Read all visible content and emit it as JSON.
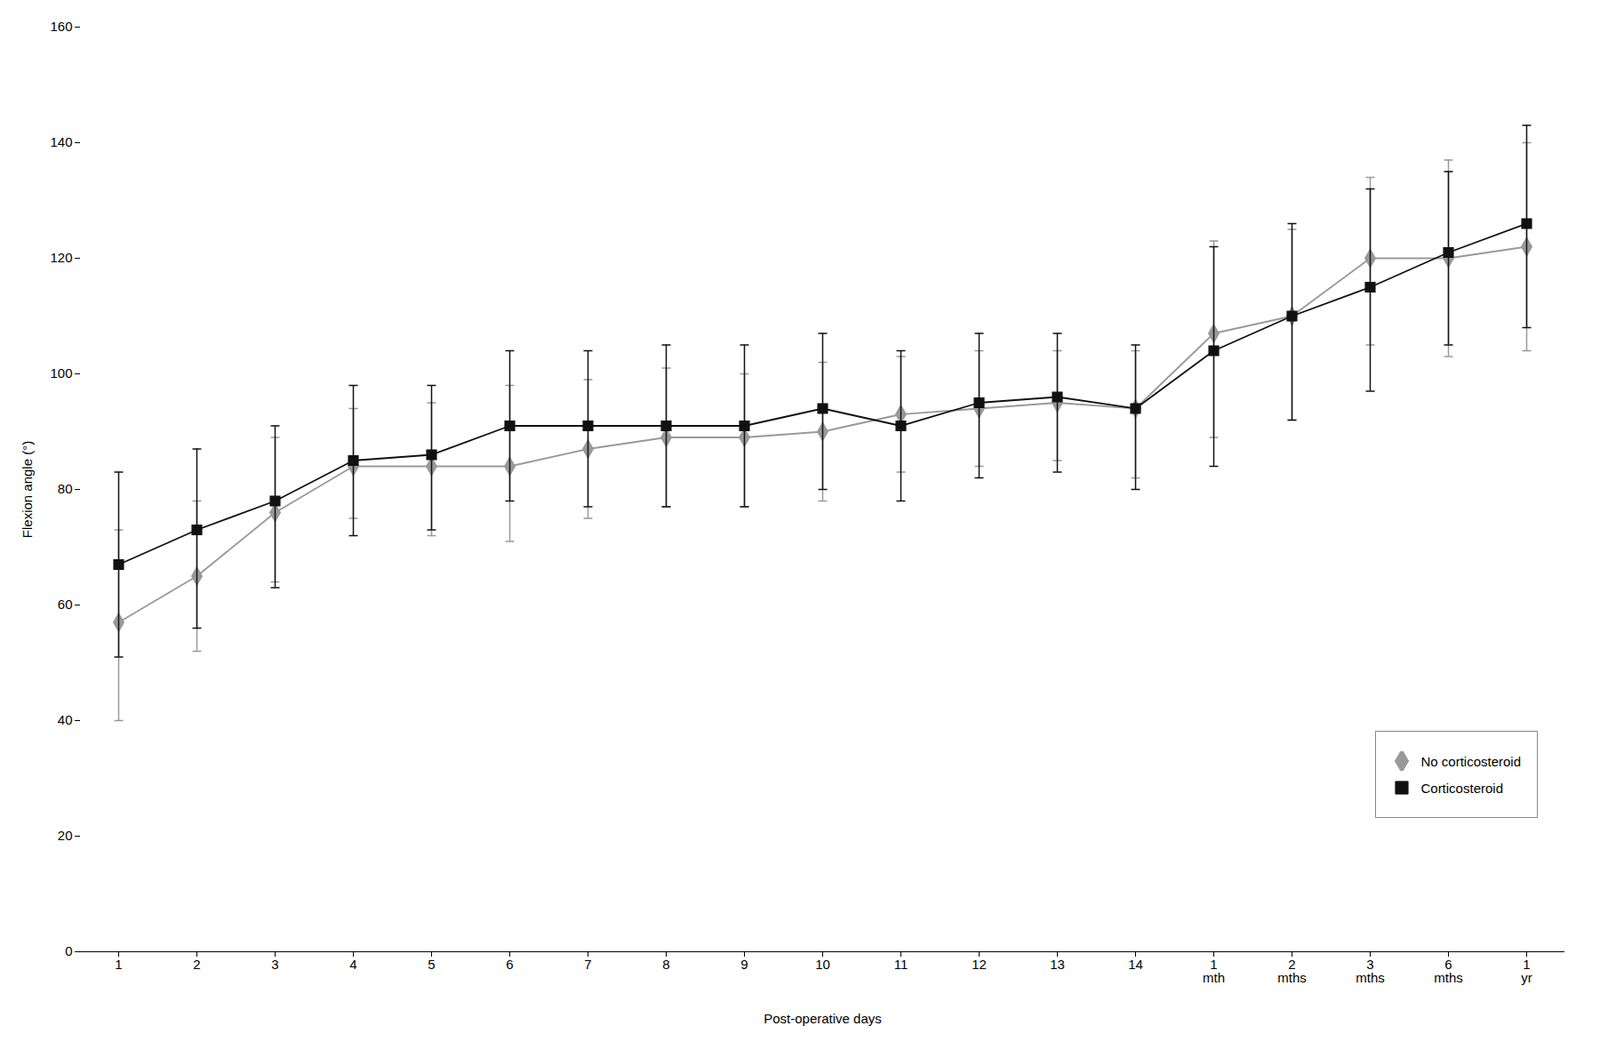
{
  "chart_data": {
    "type": "line",
    "xlabel": "Post-operative days",
    "ylabel": "Flexion angle (°)",
    "categories": [
      "1",
      "2",
      "3",
      "4",
      "5",
      "6",
      "7",
      "8",
      "9",
      "10",
      "11",
      "12",
      "13",
      "14",
      "1\nmth",
      "2\nmths",
      "3\nmths",
      "6\nmths",
      "1\nyr"
    ],
    "series": [
      {
        "name": "No corticosteroid",
        "color": "#999999",
        "marker": "diamond",
        "values": [
          57,
          65,
          76,
          84,
          84,
          84,
          87,
          89,
          89,
          90,
          93,
          94,
          95,
          94,
          107,
          110,
          120,
          120,
          122
        ],
        "error_low": [
          17,
          13,
          12,
          9,
          12,
          13,
          12,
          12,
          12,
          12,
          10,
          10,
          10,
          12,
          18,
          18,
          15,
          17,
          18
        ],
        "error_high": [
          16,
          13,
          13,
          10,
          11,
          14,
          12,
          12,
          11,
          12,
          10,
          10,
          9,
          10,
          16,
          15,
          14,
          17,
          18
        ]
      },
      {
        "name": "Corticosteroid",
        "color": "#111111",
        "marker": "square",
        "values": [
          67,
          73,
          78,
          85,
          86,
          91,
          91,
          91,
          91,
          94,
          91,
          95,
          96,
          94,
          104,
          110,
          115,
          121,
          126
        ],
        "error_low": [
          16,
          17,
          15,
          13,
          13,
          13,
          14,
          14,
          14,
          14,
          13,
          13,
          13,
          14,
          20,
          18,
          18,
          16,
          18
        ],
        "error_high": [
          16,
          14,
          13,
          13,
          12,
          13,
          13,
          14,
          14,
          13,
          13,
          12,
          11,
          11,
          18,
          16,
          17,
          14,
          17
        ]
      }
    ],
    "ylim": [
      0,
      160
    ],
    "yticks": [
      0,
      20,
      40,
      60,
      80,
      100,
      120,
      140,
      160
    ],
    "grid": false,
    "legend": "right"
  }
}
